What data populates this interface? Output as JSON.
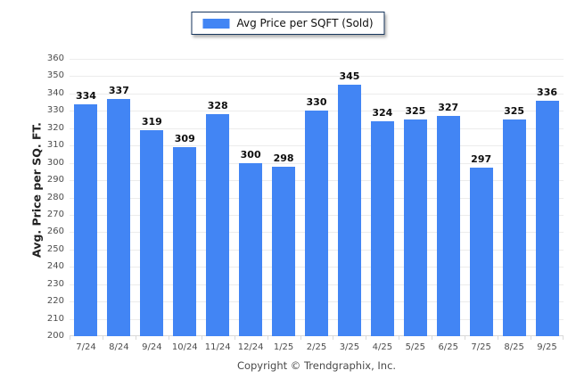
{
  "legend": {
    "label": "Avg Price per SQFT (Sold)"
  },
  "footer": {
    "copyright": "Copyright © Trendgraphix, Inc."
  },
  "colors": {
    "bar": "#4285F4",
    "gridline": "#ececec",
    "baseline": "#d9d9d9",
    "legend_border": "#17365d",
    "tick_text": "#4d4d4d",
    "value_text": "#0d0d0d"
  },
  "chart_data": {
    "type": "bar",
    "categories": [
      "7/24",
      "8/24",
      "9/24",
      "10/24",
      "11/24",
      "12/24",
      "1/25",
      "2/25",
      "3/25",
      "4/25",
      "5/25",
      "6/25",
      "7/25",
      "8/25",
      "9/25"
    ],
    "values": [
      334,
      337,
      319,
      309,
      328,
      300,
      298,
      330,
      345,
      324,
      325,
      327,
      297,
      325,
      336
    ],
    "title": "",
    "xlabel": "",
    "ylabel": "Avg. Price per SQ. FT.",
    "ylim": [
      200,
      360
    ],
    "ytick_step": 10,
    "grid": true,
    "legend_entries": [
      "Avg Price per SQFT (Sold)"
    ],
    "legend_position": "top-center",
    "value_labels": true
  }
}
